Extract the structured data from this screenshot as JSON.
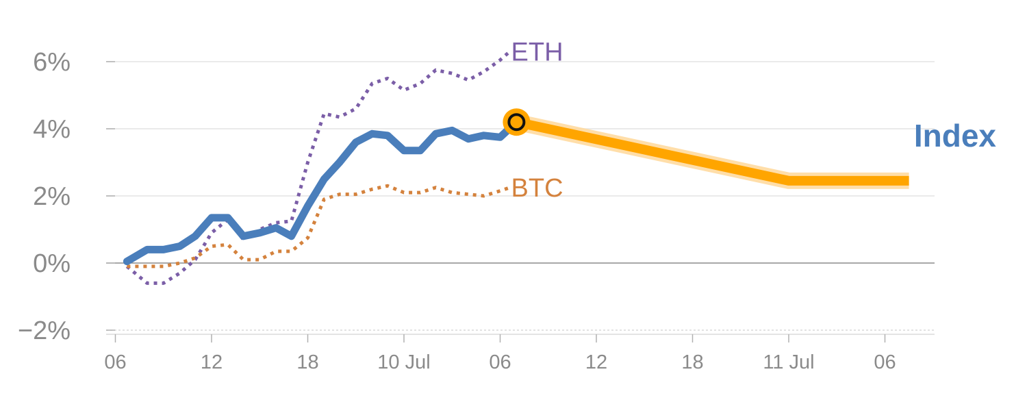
{
  "chart_data": {
    "type": "line",
    "title": "",
    "xlabel": "",
    "ylabel": "",
    "ylim": [
      -2,
      6.6
    ],
    "y_ticks": [
      {
        "value": -2,
        "label": "−2%"
      },
      {
        "value": 0,
        "label": "0%"
      },
      {
        "value": 2,
        "label": "2%"
      },
      {
        "value": 4,
        "label": "4%"
      },
      {
        "value": 6,
        "label": "6%"
      }
    ],
    "x_range": [
      -0.1,
      8.4
    ],
    "x_ticks": [
      {
        "value": 0,
        "label": "06"
      },
      {
        "value": 1,
        "label": "12"
      },
      {
        "value": 2,
        "label": "18"
      },
      {
        "value": 3,
        "label": "10 Jul"
      },
      {
        "value": 4,
        "label": "06"
      },
      {
        "value": 5,
        "label": "12"
      },
      {
        "value": 6,
        "label": "18"
      },
      {
        "value": 7,
        "label": "11 Jul"
      },
      {
        "value": 8,
        "label": "06"
      }
    ],
    "grid": true,
    "series": [
      {
        "name": "Index",
        "color": "#4a7ebb",
        "style": "solid",
        "x": [
          0.12,
          0.33,
          0.5,
          0.67,
          0.83,
          1.0,
          1.17,
          1.33,
          1.5,
          1.67,
          1.83,
          2.0,
          2.17,
          2.33,
          2.5,
          2.67,
          2.83,
          3.0,
          3.17,
          3.33,
          3.5,
          3.67,
          3.83,
          4.0,
          4.17
        ],
        "values": [
          0.05,
          0.4,
          0.4,
          0.5,
          0.8,
          1.35,
          1.35,
          0.8,
          0.9,
          1.05,
          0.8,
          1.7,
          2.5,
          3.0,
          3.6,
          3.85,
          3.8,
          3.35,
          3.35,
          3.85,
          3.95,
          3.7,
          3.8,
          3.75,
          4.2
        ]
      },
      {
        "name": "ETH",
        "color": "#7b5ea7",
        "style": "dotted",
        "x": [
          0.12,
          0.33,
          0.5,
          0.67,
          0.83,
          1.0,
          1.17,
          1.33,
          1.5,
          1.67,
          1.83,
          2.0,
          2.17,
          2.33,
          2.5,
          2.67,
          2.83,
          3.0,
          3.17,
          3.33,
          3.5,
          3.67,
          3.83,
          4.0,
          4.1
        ],
        "values": [
          -0.1,
          -0.6,
          -0.6,
          -0.3,
          0.1,
          0.9,
          1.3,
          0.7,
          1.0,
          1.2,
          1.25,
          3.0,
          4.45,
          4.35,
          4.6,
          5.35,
          5.5,
          5.15,
          5.35,
          5.75,
          5.65,
          5.45,
          5.7,
          6.05,
          6.3
        ]
      },
      {
        "name": "BTC",
        "color": "#d4823d",
        "style": "dotted",
        "x": [
          0.12,
          0.33,
          0.5,
          0.67,
          0.83,
          1.0,
          1.17,
          1.33,
          1.5,
          1.67,
          1.83,
          2.0,
          2.17,
          2.33,
          2.5,
          2.67,
          2.83,
          3.0,
          3.17,
          3.33,
          3.5,
          3.67,
          3.83,
          4.0,
          4.1
        ],
        "values": [
          -0.1,
          -0.1,
          -0.1,
          0.0,
          0.15,
          0.5,
          0.55,
          0.1,
          0.1,
          0.35,
          0.35,
          0.75,
          1.9,
          2.05,
          2.05,
          2.2,
          2.3,
          2.1,
          2.1,
          2.25,
          2.1,
          2.05,
          2.0,
          2.15,
          2.25
        ]
      }
    ],
    "forecast": {
      "name": "Index",
      "color": "#ffa500",
      "x": [
        4.17,
        7.0,
        8.25
      ],
      "values": [
        4.2,
        2.45,
        2.45
      ]
    },
    "marker": {
      "x": 4.17,
      "value": 4.2
    }
  }
}
